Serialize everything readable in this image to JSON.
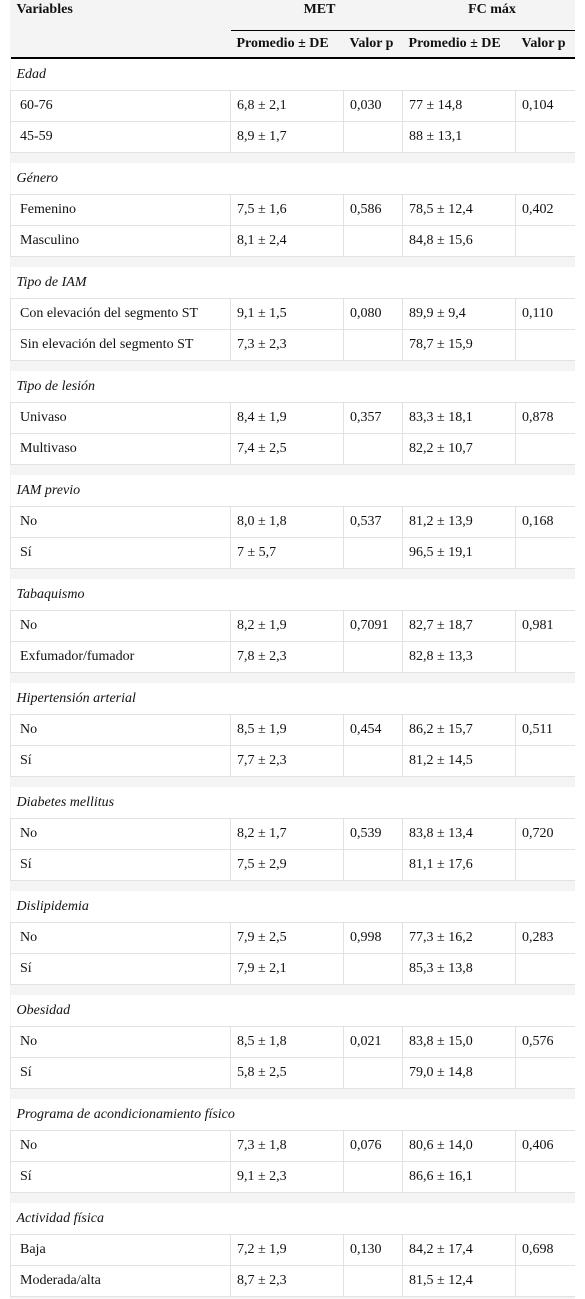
{
  "header": {
    "variables": "Variables",
    "met": "MET",
    "fc": "FC máx",
    "columns": [
      "Promedio ± DE",
      "Valor p",
      "Promedio ± DE",
      "Valor p"
    ]
  },
  "groups": [
    {
      "label": "Edad",
      "rows": [
        {
          "name": "60-76",
          "met": "6,8 ± 2,1",
          "met_p": "0,030",
          "fc": "77 ± 14,8",
          "fc_p": "0,104"
        },
        {
          "name": "45-59",
          "met": "8,9 ± 1,7",
          "fc": "88 ± 13,1"
        }
      ]
    },
    {
      "label": "Género",
      "rows": [
        {
          "name": "Femenino",
          "met": "7,5 ± 1,6",
          "met_p": "0,586",
          "fc": "78,5 ± 12,4",
          "fc_p": "0,402"
        },
        {
          "name": "Masculino",
          "met": "8,1 ± 2,4",
          "fc": "84,8 ± 15,6"
        }
      ]
    },
    {
      "label": "Tipo de IAM",
      "rows": [
        {
          "name": "Con elevación del segmento ST",
          "met": "9,1 ± 1,5",
          "met_p": "0,080",
          "fc": "89,9 ± 9,4",
          "fc_p": "0,110"
        },
        {
          "name": "Sin elevación del segmento ST",
          "met": "7,3 ± 2,3",
          "fc": "78,7 ± 15,9"
        }
      ]
    },
    {
      "label": "Tipo de lesión",
      "rows": [
        {
          "name": "Univaso",
          "met": "8,4 ± 1,9",
          "met_p": "0,357",
          "fc": "83,3 ± 18,1",
          "fc_p": "0,878"
        },
        {
          "name": "Multivaso",
          "met": "7,4 ± 2,5",
          "fc": "82,2 ± 10,7"
        }
      ]
    },
    {
      "label": "IAM previo",
      "rows": [
        {
          "name": "No",
          "met": "8,0 ± 1,8",
          "met_p": "0,537",
          "fc": "81,2 ± 13,9",
          "fc_p": "0,168"
        },
        {
          "name": "Sí",
          "met": "7 ± 5,7",
          "fc": "96,5 ± 19,1"
        }
      ]
    },
    {
      "label": "Tabaquismo",
      "rows": [
        {
          "name": "No",
          "met": "8,2 ± 1,9",
          "met_p": "0,7091",
          "fc": "82,7 ± 18,7",
          "fc_p": "0,981"
        },
        {
          "name": "Exfumador/fumador",
          "met": "7,8 ± 2,3",
          "fc": "82,8 ± 13,3"
        }
      ]
    },
    {
      "label": "Hipertensión arterial",
      "rows": [
        {
          "name": "No",
          "met": "8,5 ± 1,9",
          "met_p": "0,454",
          "fc": "86,2 ± 15,7",
          "fc_p": "0,511"
        },
        {
          "name": "Sí",
          "met": "7,7 ± 2,3",
          "fc": "81,2 ± 14,5"
        }
      ]
    },
    {
      "label": "Diabetes mellitus",
      "rows": [
        {
          "name": "No",
          "met": "8,2 ± 1,7",
          "met_p": "0,539",
          "fc": "83,8 ± 13,4",
          "fc_p": "0,720"
        },
        {
          "name": "Sí",
          "met": "7,5 ± 2,9",
          "fc": "81,1 ± 17,6"
        }
      ]
    },
    {
      "label": "Dislipidemia",
      "rows": [
        {
          "name": "No",
          "met": "7,9 ± 2,5",
          "met_p": "0,998",
          "fc": "77,3 ± 16,2",
          "fc_p": "0,283"
        },
        {
          "name": "Sí",
          "met": "7,9 ± 2,1",
          "fc": "85,3 ± 13,8"
        }
      ]
    },
    {
      "label": "Obesidad",
      "rows": [
        {
          "name": "No",
          "met": "8,5 ± 1,8",
          "met_p": "0,021",
          "fc": "83,8 ± 15,0",
          "fc_p": "0,576"
        },
        {
          "name": "Sí",
          "met": "5,8 ± 2,5",
          "fc": "79,0 ± 14,8"
        }
      ]
    },
    {
      "label": "Programa de acondicionamiento físico",
      "rows": [
        {
          "name": "No",
          "met": "7,3 ± 1,8",
          "met_p": "0,076",
          "fc": "80,6 ± 14,0",
          "fc_p": "0,406"
        },
        {
          "name": "Sí",
          "met": "9,1 ± 2,3",
          "fc": "86,6 ± 16,1"
        }
      ]
    },
    {
      "label": "Actividad física",
      "rows": [
        {
          "name": "Baja",
          "met": "7,2 ± 1,9",
          "met_p": "0,130",
          "fc": "84,2 ± 17,4",
          "fc_p": "0,698"
        },
        {
          "name": "Moderada/alta",
          "met": "8,7 ± 2,3",
          "fc": "81,5 ± 12,4"
        }
      ]
    }
  ]
}
